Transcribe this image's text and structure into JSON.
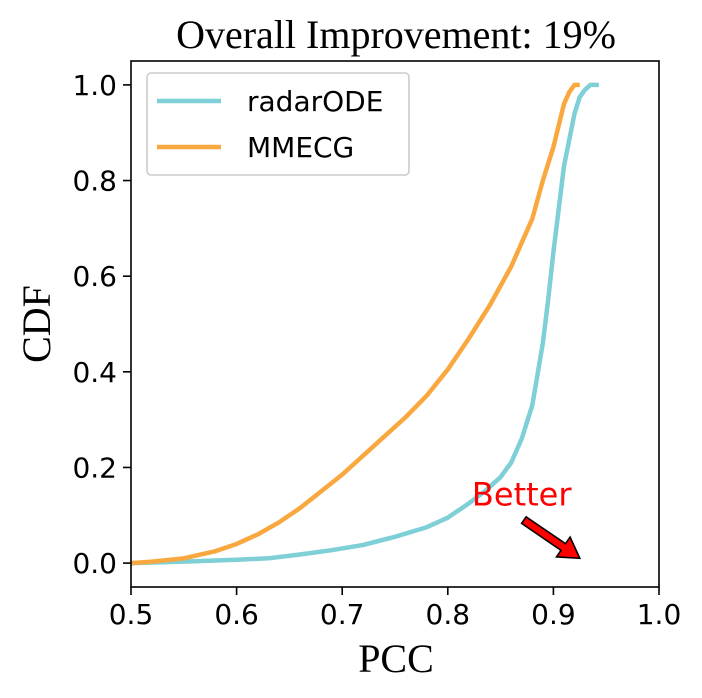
{
  "chart_data": {
    "type": "line",
    "title": "Overall Improvement: 19%",
    "xlabel": "PCC",
    "ylabel": "CDF",
    "xlim": [
      0.5,
      1.0
    ],
    "ylim": [
      -0.05,
      1.05
    ],
    "xticks": [
      0.5,
      0.6,
      0.7,
      0.8,
      0.9,
      1.0
    ],
    "xtick_labels": [
      "0.5",
      "0.6",
      "0.7",
      "0.8",
      "0.9",
      "1.0"
    ],
    "yticks": [
      0.0,
      0.2,
      0.4,
      0.6,
      0.8,
      1.0
    ],
    "ytick_labels": [
      "0.0",
      "0.2",
      "0.4",
      "0.6",
      "0.8",
      "1.0"
    ],
    "grid": false,
    "legend_position": "top-left",
    "series": [
      {
        "name": "radarODE",
        "color": "#7ecfd6",
        "x": [
          0.5,
          0.55,
          0.6,
          0.63,
          0.66,
          0.69,
          0.72,
          0.75,
          0.78,
          0.8,
          0.82,
          0.835,
          0.85,
          0.86,
          0.87,
          0.88,
          0.89,
          0.895,
          0.9,
          0.91,
          0.92,
          0.925,
          0.93,
          0.935,
          0.94,
          0.943
        ],
        "y": [
          0.0,
          0.003,
          0.007,
          0.01,
          0.018,
          0.027,
          0.038,
          0.055,
          0.075,
          0.095,
          0.125,
          0.15,
          0.18,
          0.21,
          0.26,
          0.33,
          0.46,
          0.55,
          0.65,
          0.83,
          0.94,
          0.975,
          0.99,
          1.0,
          1.0,
          1.0
        ]
      },
      {
        "name": "MMECG",
        "color": "#f9a83f",
        "x": [
          0.5,
          0.52,
          0.55,
          0.58,
          0.6,
          0.62,
          0.64,
          0.66,
          0.68,
          0.7,
          0.72,
          0.74,
          0.76,
          0.78,
          0.8,
          0.82,
          0.84,
          0.86,
          0.88,
          0.89,
          0.9,
          0.91,
          0.915,
          0.92,
          0.925
        ],
        "y": [
          0.0,
          0.003,
          0.01,
          0.025,
          0.04,
          0.06,
          0.085,
          0.115,
          0.15,
          0.185,
          0.225,
          0.265,
          0.305,
          0.35,
          0.405,
          0.47,
          0.54,
          0.62,
          0.72,
          0.8,
          0.87,
          0.96,
          0.985,
          1.0,
          1.0
        ]
      }
    ],
    "annotations": [
      {
        "text": "Better",
        "color": "#ff0000",
        "text_x": 0.87,
        "text_y": 0.12,
        "arrow_from": [
          0.872,
          0.09
        ],
        "arrow_to": [
          0.925,
          0.01
        ]
      }
    ]
  }
}
